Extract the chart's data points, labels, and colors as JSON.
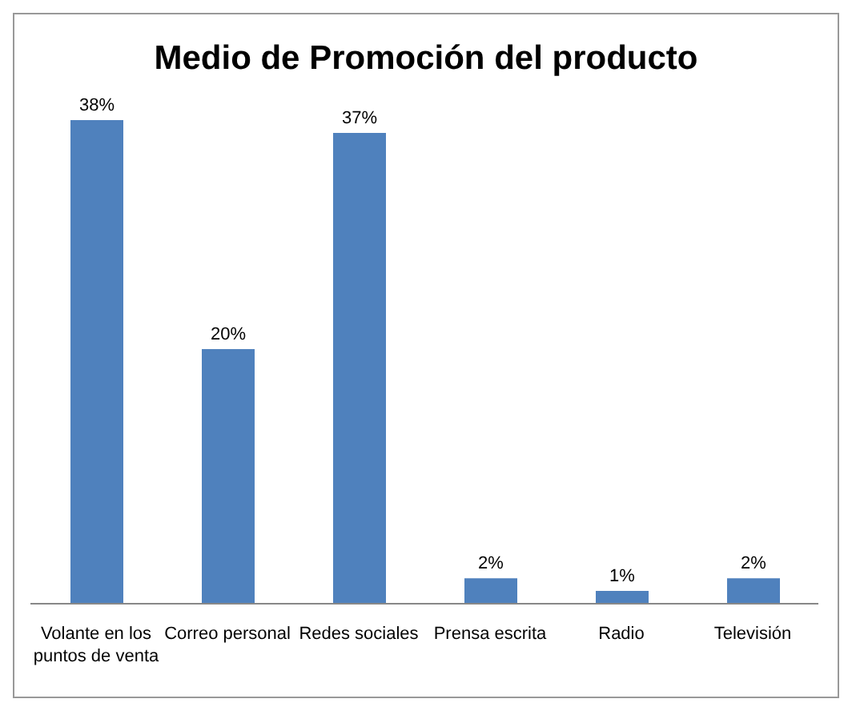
{
  "chart_data": {
    "type": "bar",
    "title": "Medio de Promoción del producto",
    "categories": [
      "Volante en los puntos de venta",
      "Correo personal",
      "Redes sociales",
      "Prensa escrita",
      "Radio",
      "Televisión"
    ],
    "values": [
      38,
      20,
      37,
      2,
      1,
      2
    ],
    "value_labels": [
      "38%",
      "20%",
      "37%",
      "2%",
      "1%",
      "2%"
    ],
    "color": "#4f81bd",
    "grid": false,
    "legend": false
  }
}
